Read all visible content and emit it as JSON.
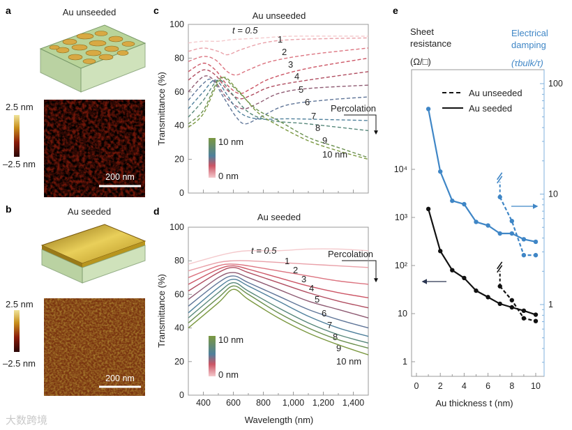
{
  "panels": {
    "a": "a",
    "b": "b",
    "c": "c",
    "d": "d",
    "e": "e"
  },
  "panel_a": {
    "title": "Au unseeded",
    "cb_top": "2.5 nm",
    "cb_bottom": "–2.5 nm",
    "scale": "200 nm"
  },
  "panel_b": {
    "title": "Au seeded",
    "cb_top": "2.5 nm",
    "cb_bottom": "–2.5 nm",
    "scale": "200 nm"
  },
  "watermark": "大数跨境",
  "colors": {
    "blue": "#3f86c6",
    "black": "#111111",
    "thickness_colors": [
      "#f4c9cc",
      "#e9a0a8",
      "#dc7480",
      "#cc5565",
      "#b04d60",
      "#8e5a72",
      "#5f7598",
      "#4f809c",
      "#56877a",
      "#6a8f4e",
      "#7b9840"
    ]
  },
  "chart_data": [
    {
      "type": "line",
      "title": "Au unseeded",
      "panel": "c",
      "xlabel": "Wavelength (nm)",
      "ylabel": "Transmittance (%)",
      "xlim": [
        300,
        1500
      ],
      "ylim": [
        0,
        100
      ],
      "yticks": [
        "0",
        "20",
        "40",
        "60",
        "80",
        "100"
      ],
      "annotation": "Percolation",
      "legend": {
        "top": "10 nm",
        "bottom": "0 nm"
      },
      "series": [
        {
          "name": "t = 0.5",
          "points": [
            [
              300,
              89
            ],
            [
              400,
              90
            ],
            [
              500,
              90
            ],
            [
              600,
              91
            ],
            [
              800,
              92
            ],
            [
              1000,
              93
            ],
            [
              1500,
              93
            ]
          ]
        },
        {
          "name": "1",
          "points": [
            [
              300,
              84
            ],
            [
              400,
              86
            ],
            [
              500,
              84
            ],
            [
              560,
              82
            ],
            [
              650,
              85
            ],
            [
              800,
              89
            ],
            [
              1000,
              91
            ],
            [
              1500,
              92
            ]
          ]
        },
        {
          "name": "2",
          "points": [
            [
              300,
              78
            ],
            [
              400,
              81
            ],
            [
              480,
              79
            ],
            [
              560,
              72
            ],
            [
              620,
              70
            ],
            [
              700,
              73
            ],
            [
              850,
              78
            ],
            [
              1100,
              82
            ],
            [
              1500,
              86
            ]
          ]
        },
        {
          "name": "3",
          "points": [
            [
              300,
              72
            ],
            [
              400,
              77
            ],
            [
              480,
              73
            ],
            [
              560,
              64
            ],
            [
              640,
              59
            ],
            [
              720,
              62
            ],
            [
              850,
              68
            ],
            [
              1100,
              74
            ],
            [
              1500,
              80
            ]
          ]
        },
        {
          "name": "4",
          "points": [
            [
              300,
              67
            ],
            [
              400,
              73
            ],
            [
              480,
              70
            ],
            [
              560,
              61
            ],
            [
              640,
              56
            ],
            [
              720,
              58
            ],
            [
              850,
              63
            ],
            [
              1100,
              67
            ],
            [
              1500,
              72
            ]
          ]
        },
        {
          "name": "5",
          "points": [
            [
              300,
              60
            ],
            [
              400,
              69
            ],
            [
              470,
              67
            ],
            [
              560,
              56
            ],
            [
              660,
              50
            ],
            [
              760,
              53
            ],
            [
              900,
              59
            ],
            [
              1100,
              62
            ],
            [
              1500,
              64
            ]
          ]
        },
        {
          "name": "6",
          "points": [
            [
              300,
              55
            ],
            [
              400,
              65
            ],
            [
              460,
              67
            ],
            [
              540,
              56
            ],
            [
              620,
              45
            ],
            [
              680,
              41
            ],
            [
              780,
              45
            ],
            [
              950,
              52
            ],
            [
              1200,
              55
            ],
            [
              1500,
              57
            ]
          ]
        },
        {
          "name": "7",
          "points": [
            [
              300,
              50
            ],
            [
              400,
              60
            ],
            [
              480,
              67
            ],
            [
              560,
              58
            ],
            [
              640,
              48
            ],
            [
              760,
              44
            ],
            [
              1000,
              44
            ],
            [
              1500,
              43
            ]
          ]
        },
        {
          "name": "8",
          "points": [
            [
              300,
              45
            ],
            [
              400,
              55
            ],
            [
              500,
              67
            ],
            [
              580,
              60
            ],
            [
              700,
              48
            ],
            [
              850,
              43
            ],
            [
              1100,
              41
            ],
            [
              1500,
              37
            ]
          ]
        },
        {
          "name": "9",
          "points": [
            [
              300,
              41
            ],
            [
              400,
              49
            ],
            [
              510,
              68
            ],
            [
              600,
              63
            ],
            [
              750,
              50
            ],
            [
              900,
              43
            ],
            [
              1100,
              33
            ],
            [
              1300,
              27
            ],
            [
              1500,
              21
            ]
          ]
        },
        {
          "name": "10 nm",
          "points": [
            [
              300,
              39
            ],
            [
              400,
              47
            ],
            [
              520,
              68
            ],
            [
              620,
              62
            ],
            [
              760,
              48
            ],
            [
              900,
              40
            ],
            [
              1100,
              31
            ],
            [
              1300,
              25
            ],
            [
              1500,
              20
            ]
          ]
        }
      ]
    },
    {
      "type": "line",
      "title": "Au seeded",
      "panel": "d",
      "xlabel": "Wavelength (nm)",
      "ylabel": "Transmittance (%)",
      "xlim": [
        300,
        1500
      ],
      "ylim": [
        0,
        100
      ],
      "xticks": [
        "400",
        "600",
        "800",
        "1,000",
        "1,200",
        "1,400"
      ],
      "yticks": [
        "0",
        "20",
        "40",
        "60",
        "80",
        "100"
      ],
      "annotation": "Percolation",
      "legend": {
        "top": "10 nm",
        "bottom": "0 nm"
      },
      "series": [
        {
          "name": "t = 0.5",
          "points": [
            [
              300,
              78
            ],
            [
              500,
              83
            ],
            [
              600,
              85
            ],
            [
              700,
              86
            ],
            [
              900,
              86
            ],
            [
              1100,
              87
            ],
            [
              1300,
              87
            ],
            [
              1500,
              86
            ]
          ]
        },
        {
          "name": "1",
          "points": [
            [
              300,
              74
            ],
            [
              500,
              79
            ],
            [
              600,
              80
            ],
            [
              700,
              80
            ],
            [
              900,
              79
            ],
            [
              1100,
              78
            ],
            [
              1300,
              77
            ],
            [
              1500,
              76
            ]
          ]
        },
        {
          "name": "2",
          "points": [
            [
              300,
              70
            ],
            [
              500,
              77
            ],
            [
              600,
              78
            ],
            [
              700,
              77
            ],
            [
              900,
              74
            ],
            [
              1100,
              71
            ],
            [
              1300,
              68
            ],
            [
              1500,
              66
            ]
          ]
        },
        {
          "name": "3",
          "points": [
            [
              300,
              66
            ],
            [
              500,
              75
            ],
            [
              600,
              77
            ],
            [
              700,
              75
            ],
            [
              900,
              70
            ],
            [
              1100,
              65
            ],
            [
              1300,
              61
            ],
            [
              1500,
              58
            ]
          ]
        },
        {
          "name": "4",
          "points": [
            [
              300,
              62
            ],
            [
              500,
              73
            ],
            [
              600,
              76
            ],
            [
              700,
              73
            ],
            [
              900,
              67
            ],
            [
              1100,
              61
            ],
            [
              1300,
              56
            ],
            [
              1500,
              52
            ]
          ]
        },
        {
          "name": "5",
          "points": [
            [
              300,
              57
            ],
            [
              500,
              70
            ],
            [
              600,
              73
            ],
            [
              700,
              70
            ],
            [
              900,
              63
            ],
            [
              1100,
              56
            ],
            [
              1300,
              51
            ],
            [
              1500,
              46
            ]
          ]
        },
        {
          "name": "6",
          "points": [
            [
              300,
              53
            ],
            [
              500,
              67
            ],
            [
              600,
              71
            ],
            [
              700,
              67
            ],
            [
              900,
              59
            ],
            [
              1100,
              51
            ],
            [
              1300,
              45
            ],
            [
              1500,
              40
            ]
          ]
        },
        {
          "name": "7",
          "points": [
            [
              300,
              49
            ],
            [
              500,
              64
            ],
            [
              600,
              69
            ],
            [
              700,
              65
            ],
            [
              900,
              56
            ],
            [
              1100,
              47
            ],
            [
              1300,
              40
            ],
            [
              1500,
              35
            ]
          ]
        },
        {
          "name": "8",
          "points": [
            [
              300,
              46
            ],
            [
              500,
              61
            ],
            [
              600,
              67
            ],
            [
              700,
              62
            ],
            [
              900,
              52
            ],
            [
              1100,
              43
            ],
            [
              1300,
              36
            ],
            [
              1500,
              31
            ]
          ]
        },
        {
          "name": "9",
          "points": [
            [
              300,
              43
            ],
            [
              500,
              58
            ],
            [
              600,
              65
            ],
            [
              700,
              60
            ],
            [
              900,
              49
            ],
            [
              1100,
              40
            ],
            [
              1300,
              33
            ],
            [
              1500,
              28
            ]
          ]
        },
        {
          "name": "10 nm",
          "points": [
            [
              300,
              40
            ],
            [
              500,
              55
            ],
            [
              600,
              63
            ],
            [
              700,
              57
            ],
            [
              900,
              46
            ],
            [
              1100,
              37
            ],
            [
              1300,
              30
            ],
            [
              1500,
              24
            ]
          ]
        }
      ]
    },
    {
      "type": "line",
      "panel": "e",
      "xlabel": "Au thickness t (nm)",
      "xlim": [
        0,
        10
      ],
      "xticks": [
        "0",
        "2",
        "4",
        "6",
        "8",
        "10"
      ],
      "ylabel_left": [
        "Sheet",
        "resistance",
        "(Ω/□)"
      ],
      "ylabel_right": [
        "Electrical",
        "damping",
        "(τbulk/τ)"
      ],
      "yticks_left": [
        "1",
        "10",
        "10²",
        "10³",
        "10⁴"
      ],
      "yticks_right": [
        "1",
        "10",
        "100"
      ],
      "legend": {
        "dashed": "Au unseeded",
        "solid": "Au seeded",
        "placement": "top-center"
      },
      "series": [
        {
          "name": "Au seeded – sheet resistance",
          "axis": "left",
          "style": "solid",
          "x": [
            1,
            2,
            3,
            4,
            5,
            6,
            7,
            8,
            9,
            10
          ],
          "y": [
            1500,
            200,
            80,
            55,
            30,
            22,
            16,
            13.5,
            11.5,
            9.5
          ]
        },
        {
          "name": "Au unseeded – sheet resistance",
          "axis": "left",
          "style": "dashed",
          "x": [
            7,
            8,
            9,
            10
          ],
          "y": [
            37,
            19,
            8,
            7
          ]
        },
        {
          "name": "Au seeded – electrical damping",
          "axis": "right",
          "style": "solid",
          "x": [
            1,
            2,
            3,
            4,
            5,
            6,
            7,
            8,
            9,
            10
          ],
          "y": [
            59,
            16,
            8.7,
            8.1,
            5.6,
            5.2,
            4.4,
            4.4,
            3.9,
            3.7
          ]
        },
        {
          "name": "Au unseeded – electrical damping",
          "axis": "right",
          "style": "dashed",
          "x": [
            7,
            8,
            9,
            10
          ],
          "y": [
            9.4,
            5.7,
            2.8,
            2.8
          ]
        }
      ]
    }
  ]
}
